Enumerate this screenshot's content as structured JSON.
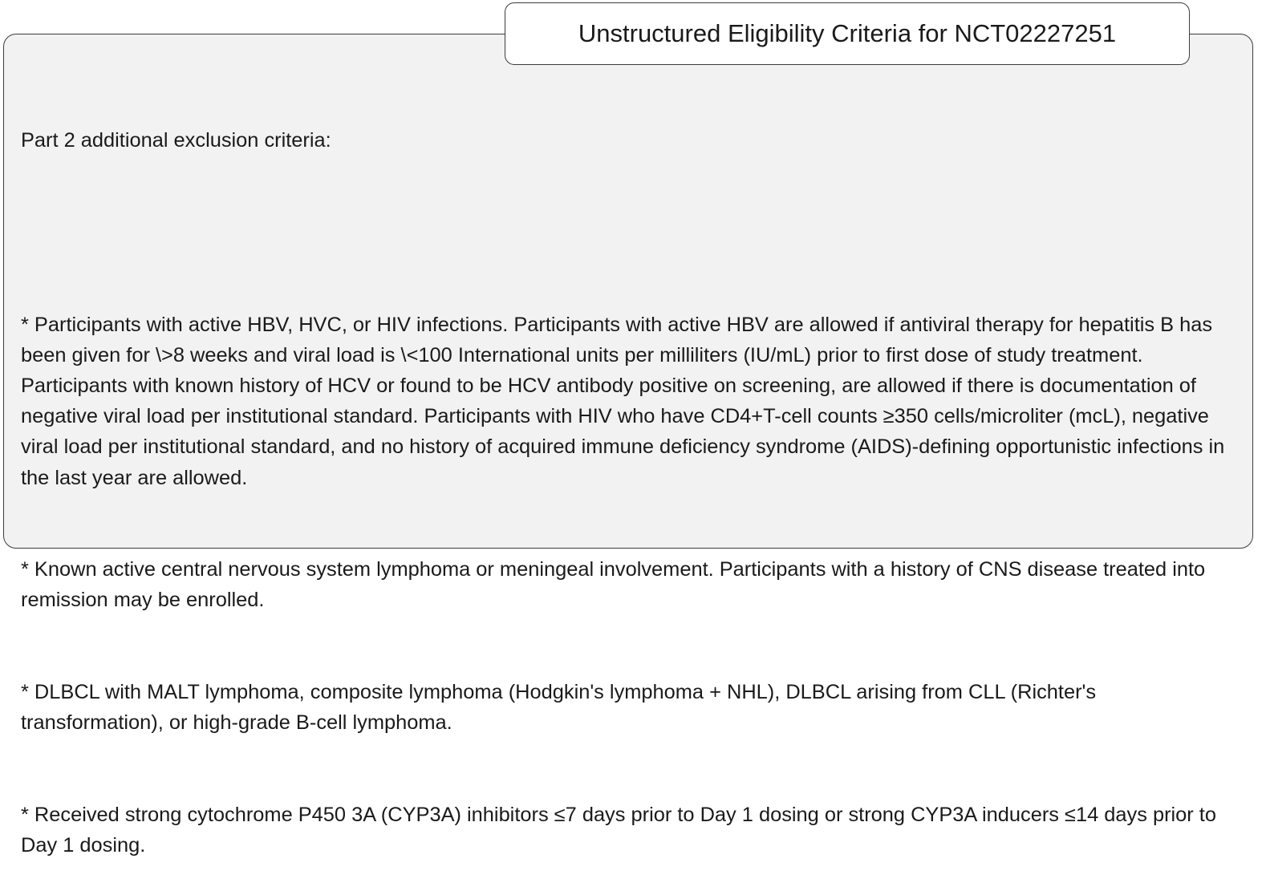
{
  "title": "Unstructured Eligibility Criteria for NCT02227251",
  "heading": "Part 2 additional exclusion criteria:",
  "criteria": [
    "* Participants with active HBV, HVC, or HIV infections. Participants with active HBV are allowed if antiviral therapy for hepatitis B has been given for \\>8 weeks and viral load is \\<100 International units per milliliters (IU/mL) prior to first dose of study treatment. Participants with known history of HCV or found to be HCV antibody positive on screening, are allowed if there is documentation of negative viral load per institutional standard. Participants with HIV who have CD4+T-cell counts ≥350 cells/microliter (mcL), negative viral load per institutional standard, and no history of acquired immune deficiency syndrome (AIDS)-defining opportunistic infections in the last year are allowed.",
    "* Known active central nervous system lymphoma or meningeal involvement. Participants with a history of CNS disease treated into remission may be enrolled.",
    "* DLBCL with MALT lymphoma, composite lymphoma (Hodgkin's lymphoma + NHL), DLBCL arising from CLL (Richter's transformation), or high-grade B-cell lymphoma.",
    "* Received strong cytochrome P450 3A (CYP3A) inhibitors ≤7 days prior to Day 1 dosing or strong CYP3A inducers ≤14 days prior to Day 1 dosing."
  ]
}
